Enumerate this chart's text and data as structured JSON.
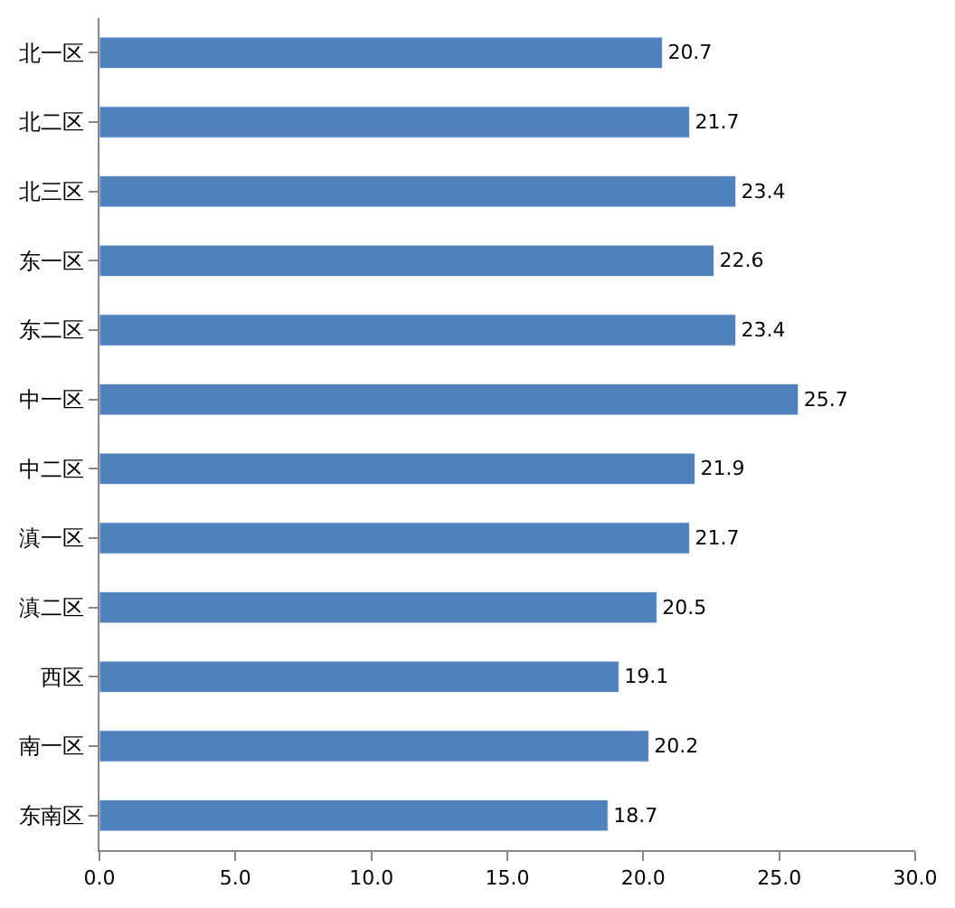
{
  "chart_data": {
    "type": "bar",
    "orientation": "horizontal",
    "categories": [
      "北一区",
      "北二区",
      "北三区",
      "东一区",
      "东二区",
      "中一区",
      "中二区",
      "滇一区",
      "滇二区",
      "西区",
      "南一区",
      "东南区"
    ],
    "values": [
      20.7,
      21.7,
      23.4,
      22.6,
      23.4,
      25.7,
      21.9,
      21.7,
      20.5,
      19.1,
      20.2,
      18.7
    ],
    "color": "#4f81bd",
    "data_labels": true,
    "grid": false,
    "legend": false,
    "xlim": [
      0,
      30
    ],
    "xticks": [
      {
        "value": 0,
        "label": "0.0"
      },
      {
        "value": 5,
        "label": "5.0"
      },
      {
        "value": 10,
        "label": "10.0"
      },
      {
        "value": 15,
        "label": "15.0"
      },
      {
        "value": 20,
        "label": "20.0"
      },
      {
        "value": 25,
        "label": "25.0"
      },
      {
        "value": 30,
        "label": "30.0"
      }
    ]
  }
}
